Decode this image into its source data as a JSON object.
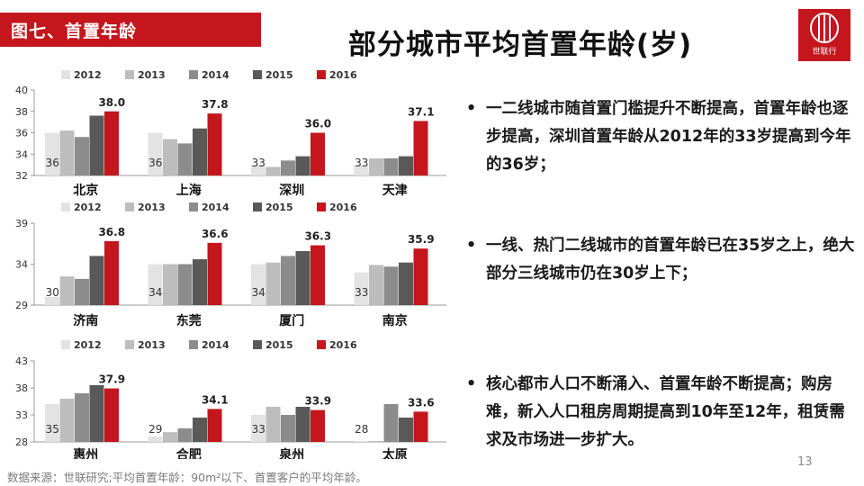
{
  "header": {
    "tag": "图七、首置年龄",
    "title": "部分城市平均首置年龄(岁)",
    "logo_text": "世联行"
  },
  "colors": {
    "2012": "#e3e3e3",
    "2013": "#bdbdbd",
    "2014": "#8c8c8c",
    "2015": "#595959",
    "2016": "#c4161c",
    "accent": "#c4161c"
  },
  "chart_data": [
    {
      "type": "bar",
      "legend": [
        "2012",
        "2013",
        "2014",
        "2015",
        "2016"
      ],
      "ylim": [
        32,
        40
      ],
      "yticks": [
        32,
        34,
        36,
        38,
        40
      ],
      "categories": [
        "北京",
        "上海",
        "深圳",
        "天津"
      ],
      "series": [
        {
          "name": "2012",
          "values": [
            36,
            36,
            33,
            33
          ]
        },
        {
          "name": "2013",
          "values": [
            36.2,
            35.4,
            32.8,
            33.6
          ]
        },
        {
          "name": "2014",
          "values": [
            35.6,
            35.0,
            33.4,
            33.6
          ]
        },
        {
          "name": "2015",
          "values": [
            37.6,
            36.4,
            33.8,
            33.8
          ]
        },
        {
          "name": "2016",
          "values": [
            38.0,
            37.8,
            36.0,
            37.1
          ]
        }
      ],
      "first_labels": [
        "36",
        "36",
        "33",
        "33"
      ],
      "last_labels": [
        "38.0",
        "37.8",
        "36.0",
        "37.1"
      ]
    },
    {
      "type": "bar",
      "legend": [
        "2012",
        "2013",
        "2014",
        "2015",
        "2016"
      ],
      "ylim": [
        29,
        39
      ],
      "yticks": [
        29,
        34,
        39
      ],
      "categories": [
        "济南",
        "东莞",
        "厦门",
        "南京"
      ],
      "series": [
        {
          "name": "2012",
          "values": [
            30,
            34,
            34,
            33
          ]
        },
        {
          "name": "2013",
          "values": [
            32.5,
            34.0,
            34.2,
            33.9
          ]
        },
        {
          "name": "2014",
          "values": [
            32.2,
            34.0,
            35.0,
            33.7
          ]
        },
        {
          "name": "2015",
          "values": [
            35.0,
            34.6,
            35.6,
            34.2
          ]
        },
        {
          "name": "2016",
          "values": [
            36.8,
            36.6,
            36.3,
            35.9
          ]
        }
      ],
      "first_labels": [
        "30",
        "34",
        "34",
        "33"
      ],
      "last_labels": [
        "36.8",
        "36.6",
        "36.3",
        "35.9"
      ]
    },
    {
      "type": "bar",
      "legend": [
        "2012",
        "2013",
        "2014",
        "2015",
        "2016"
      ],
      "ylim": [
        28,
        43
      ],
      "yticks": [
        28,
        33,
        38,
        43
      ],
      "categories": [
        "惠州",
        "合肥",
        "泉州",
        "太原"
      ],
      "series": [
        {
          "name": "2012",
          "values": [
            35,
            29,
            33,
            28
          ]
        },
        {
          "name": "2013",
          "values": [
            36.0,
            29.8,
            34.5,
            28
          ]
        },
        {
          "name": "2014",
          "values": [
            37.0,
            30.5,
            33.0,
            35.0
          ]
        },
        {
          "name": "2015",
          "values": [
            38.5,
            32.5,
            34.5,
            32.5
          ]
        },
        {
          "name": "2016",
          "values": [
            37.9,
            34.1,
            33.9,
            33.6
          ]
        }
      ],
      "first_labels": [
        "35",
        "29",
        "33",
        "28"
      ],
      "last_labels": [
        "37.9",
        "34.1",
        "33.9",
        "33.6"
      ]
    }
  ],
  "bullets": [
    "一二线城市随首置门槛提升不断提高，首置年龄也逐步提高，深圳首置年龄从2012年的33岁提高到今年的36岁；",
    "一线、热门二线城市的首置年龄已在35岁之上，绝大部分三线城市仍在30岁上下；",
    "核心都市人口不断涌入、首置年龄不断提高；购房难，新入人口租房周期提高到10年至12年，租赁需求及市场进一步扩大。"
  ],
  "bullet_glyph": "•",
  "footer": {
    "source": "数据来源：世联研究;平均首置年龄：90m²以下、首置客户的平均年龄。",
    "page": "13"
  }
}
